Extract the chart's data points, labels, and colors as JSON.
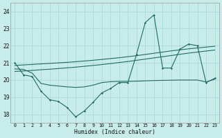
{
  "xlabel": "Humidex (Indice chaleur)",
  "bg_color": "#c8ece9",
  "grid_color": "#a8d8d4",
  "line_color": "#1e6b62",
  "xlim_min": -0.5,
  "xlim_max": 23.5,
  "ylim_min": 17.5,
  "ylim_max": 24.5,
  "yticks": [
    18,
    19,
    20,
    21,
    22,
    23,
    24
  ],
  "xticks": [
    0,
    1,
    2,
    3,
    4,
    5,
    6,
    7,
    8,
    9,
    10,
    11,
    12,
    13,
    14,
    15,
    16,
    17,
    18,
    19,
    20,
    21,
    22,
    23
  ],
  "jagged_x": [
    0,
    1,
    2,
    3,
    4,
    5,
    6,
    7,
    8,
    9,
    10,
    11,
    12,
    13,
    14,
    15,
    16,
    17,
    18,
    19,
    20,
    21,
    22,
    23
  ],
  "jagged_y": [
    21.0,
    20.3,
    20.2,
    19.35,
    18.85,
    18.75,
    18.4,
    17.85,
    18.2,
    18.7,
    19.25,
    19.5,
    19.85,
    19.85,
    21.5,
    23.35,
    23.8,
    20.7,
    20.7,
    21.8,
    22.1,
    22.0,
    19.85,
    20.1
  ],
  "upper_trend_x": [
    0,
    1,
    2,
    3,
    4,
    5,
    6,
    7,
    8,
    9,
    10,
    11,
    12,
    13,
    14,
    15,
    16,
    17,
    18,
    19,
    20,
    21,
    22,
    23
  ],
  "upper_trend_y": [
    20.85,
    20.88,
    20.91,
    20.94,
    20.97,
    21.0,
    21.03,
    21.07,
    21.11,
    21.15,
    21.2,
    21.25,
    21.3,
    21.36,
    21.42,
    21.49,
    21.56,
    21.63,
    21.7,
    21.76,
    21.82,
    21.87,
    21.92,
    21.97
  ],
  "lower_trend_x": [
    0,
    1,
    2,
    3,
    4,
    5,
    6,
    7,
    8,
    9,
    10,
    11,
    12,
    13,
    14,
    15,
    16,
    17,
    18,
    19,
    20,
    21,
    22,
    23
  ],
  "lower_trend_y": [
    20.5,
    20.53,
    20.56,
    20.6,
    20.63,
    20.67,
    20.71,
    20.75,
    20.8,
    20.85,
    20.9,
    20.96,
    21.02,
    21.08,
    21.15,
    21.22,
    21.29,
    21.36,
    21.43,
    21.5,
    21.57,
    21.63,
    21.69,
    21.75
  ],
  "flat_x": [
    0,
    1,
    2,
    3,
    4,
    5,
    6,
    7,
    8,
    9,
    10,
    11,
    12,
    13,
    14,
    15,
    16,
    17,
    18,
    19,
    20,
    21,
    22,
    23
  ],
  "flat_y": [
    20.65,
    20.62,
    20.4,
    19.8,
    19.7,
    19.65,
    19.6,
    19.57,
    19.6,
    19.7,
    19.85,
    19.9,
    19.92,
    19.92,
    19.93,
    19.95,
    19.97,
    19.98,
    19.99,
    20.0,
    20.0,
    20.0,
    19.88,
    20.05
  ]
}
